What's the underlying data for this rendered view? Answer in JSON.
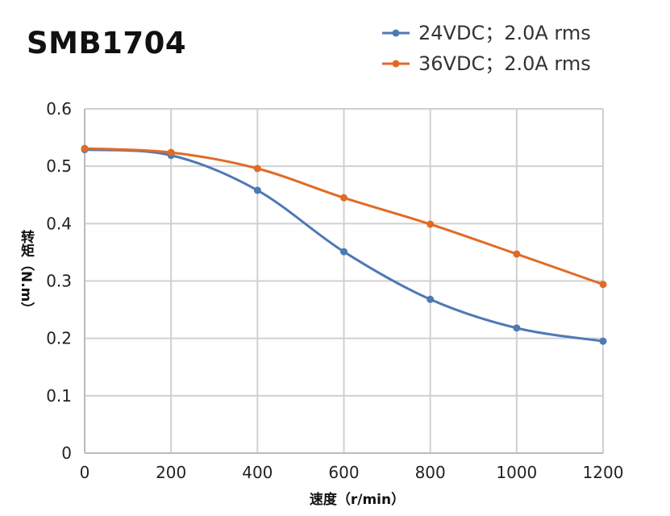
{
  "chart_data": {
    "type": "line",
    "title": "SMB1704",
    "xlabel": "速度（r/min）",
    "ylabel": "转矩（N.m）",
    "xlim": [
      0,
      1200
    ],
    "ylim": [
      0,
      0.6
    ],
    "xticks": [
      "0",
      "200",
      "400",
      "600",
      "800",
      "1000",
      "1200"
    ],
    "yticks": [
      "0",
      "0.1",
      "0.2",
      "0.3",
      "0.4",
      "0.5",
      "0.6"
    ],
    "grid": true,
    "legend_position": "top-right",
    "x": [
      0,
      200,
      400,
      600,
      800,
      1000,
      1200
    ],
    "series": [
      {
        "name": "24VDC；2.0A rms",
        "color": "#4e79b5",
        "values": [
          0.529,
          0.519,
          0.458,
          0.351,
          0.268,
          0.218,
          0.195
        ]
      },
      {
        "name": "36VDC；2.0A rms",
        "color": "#e06b26",
        "values": [
          0.531,
          0.524,
          0.496,
          0.445,
          0.399,
          0.347,
          0.294
        ]
      }
    ]
  }
}
